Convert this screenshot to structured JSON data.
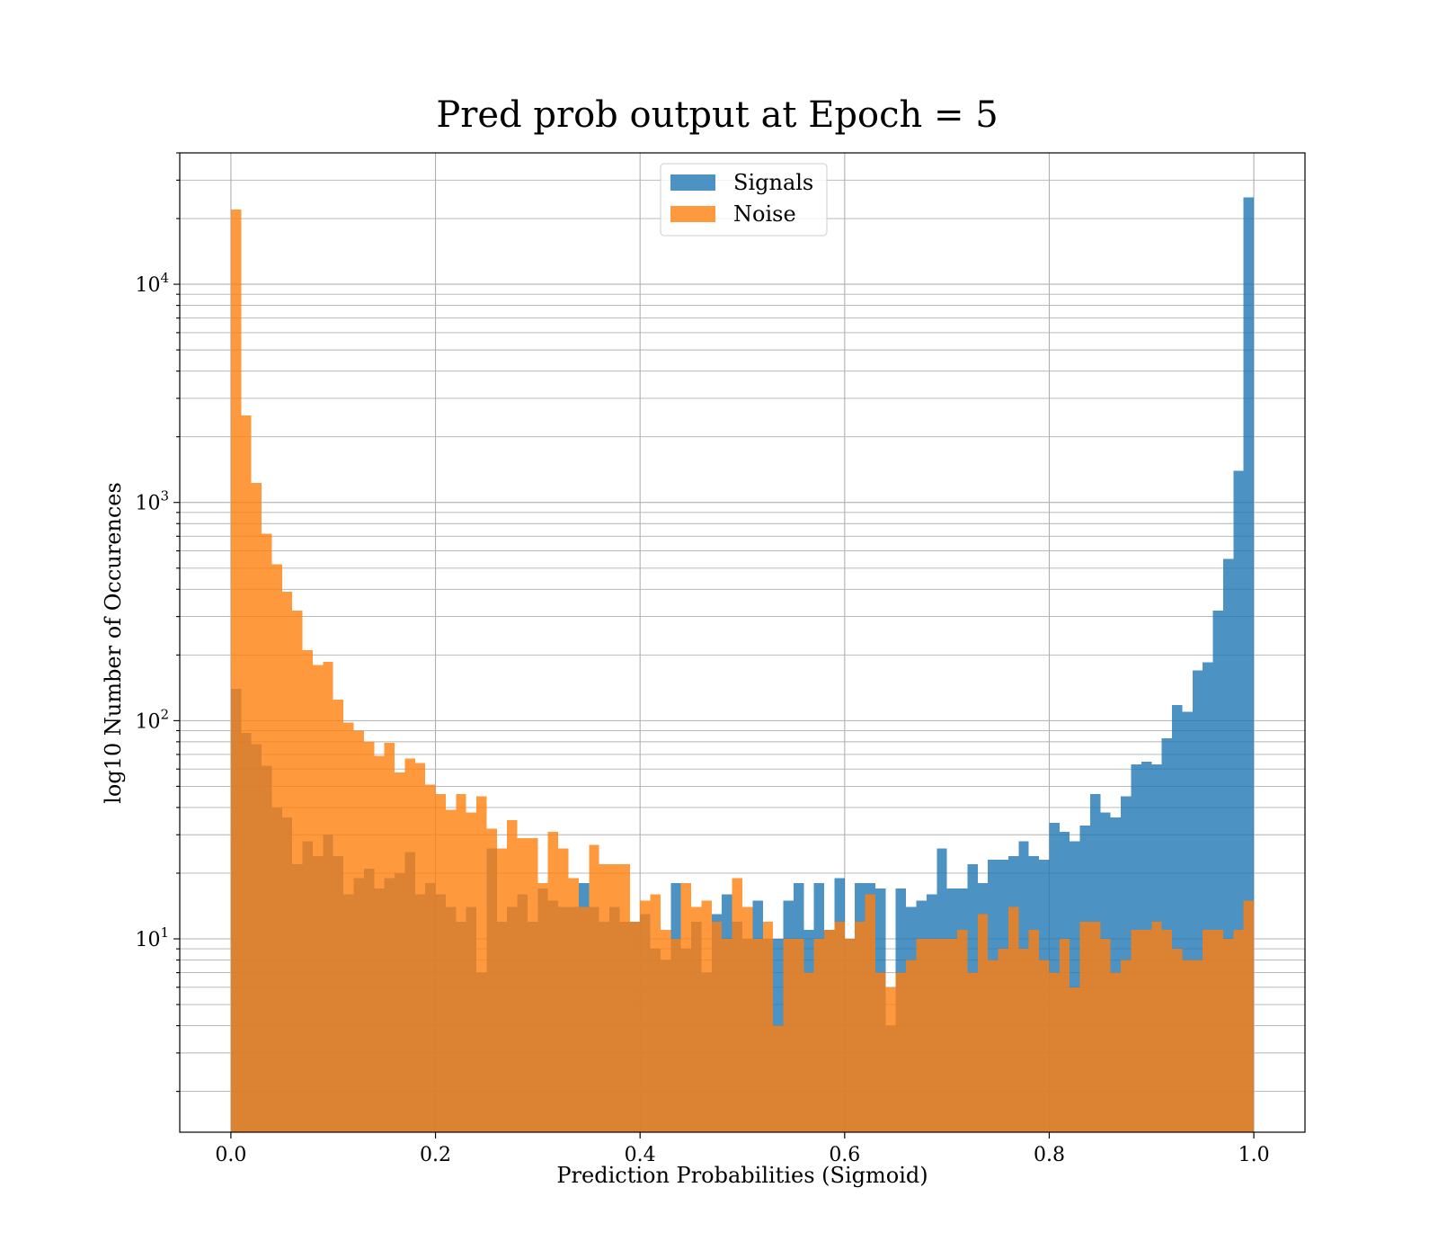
{
  "colors": {
    "signals": "#1f77b4",
    "noise": "#ff7f0e",
    "grid": "#b0b0b0",
    "axis": "#000000"
  },
  "chart_data": {
    "type": "bar",
    "title": "Pred prob output at Epoch = 5",
    "xlabel": "Prediction Probabilities (Sigmoid)",
    "ylabel": "log10 Number of Occurences",
    "xlim": [
      -0.05,
      1.05
    ],
    "ylim": [
      1.3,
      40000
    ],
    "yscale": "log",
    "grid": true,
    "legend_position": "top-center",
    "xticks": [
      0.0,
      0.2,
      0.4,
      0.6,
      0.8,
      1.0
    ],
    "xtick_labels": [
      "0.0",
      "0.2",
      "0.4",
      "0.6",
      "0.8",
      "1.0"
    ],
    "yticks": [
      {
        "value": 10,
        "base": "10",
        "exponent": "1"
      },
      {
        "value": 100,
        "base": "10",
        "exponent": "2"
      },
      {
        "value": 1000,
        "base": "10",
        "exponent": "3"
      },
      {
        "value": 10000,
        "base": "10",
        "exponent": "4"
      }
    ],
    "bin_start": 0.0,
    "bin_width": 0.01,
    "series": [
      {
        "name": "Signals",
        "color": "#1f77b4",
        "opacity": 0.8,
        "values": [
          140,
          88,
          78,
          62,
          40,
          36,
          22,
          28,
          24,
          30,
          24,
          16,
          19,
          21,
          17,
          19,
          20,
          25,
          16,
          18,
          16,
          14,
          12,
          14,
          7,
          26,
          12,
          14,
          16,
          12,
          17,
          15,
          14,
          14,
          18,
          14,
          12,
          14,
          12,
          12,
          13,
          9,
          8,
          18,
          9,
          12,
          7,
          13,
          16,
          12,
          10,
          15,
          10,
          10,
          15,
          18,
          11,
          18,
          11,
          19,
          10,
          18,
          18,
          17,
          4,
          17,
          14,
          15,
          16,
          26,
          17,
          17,
          22,
          18,
          23,
          23,
          24,
          28,
          24,
          23,
          34,
          31,
          28,
          33,
          46,
          38,
          36,
          45,
          63,
          65,
          63,
          83,
          118,
          110,
          170,
          185,
          320,
          550,
          1400,
          25000
        ]
      },
      {
        "name": "Noise",
        "color": "#ff7f0e",
        "opacity": 0.8,
        "values": [
          22000,
          2500,
          1230,
          720,
          520,
          390,
          320,
          210,
          180,
          186,
          125,
          98,
          90,
          80,
          69,
          79,
          58,
          67,
          64,
          51,
          46,
          39,
          46,
          38,
          45,
          32,
          26,
          35,
          29,
          29,
          18,
          31,
          26,
          19,
          14,
          27,
          22,
          22,
          22,
          12,
          15,
          16,
          11,
          10,
          18,
          14,
          15,
          12,
          10,
          19,
          14,
          10,
          12,
          4,
          10,
          10,
          7,
          10,
          11,
          12,
          10,
          12,
          16,
          7,
          6,
          7,
          8,
          10,
          10,
          10,
          10,
          11,
          7,
          13,
          8,
          9,
          14,
          9,
          11,
          8,
          7,
          10,
          6,
          12,
          12,
          10,
          7,
          8,
          11,
          11,
          12,
          11,
          9,
          8,
          8,
          11,
          11,
          10,
          11,
          15
        ]
      }
    ]
  }
}
